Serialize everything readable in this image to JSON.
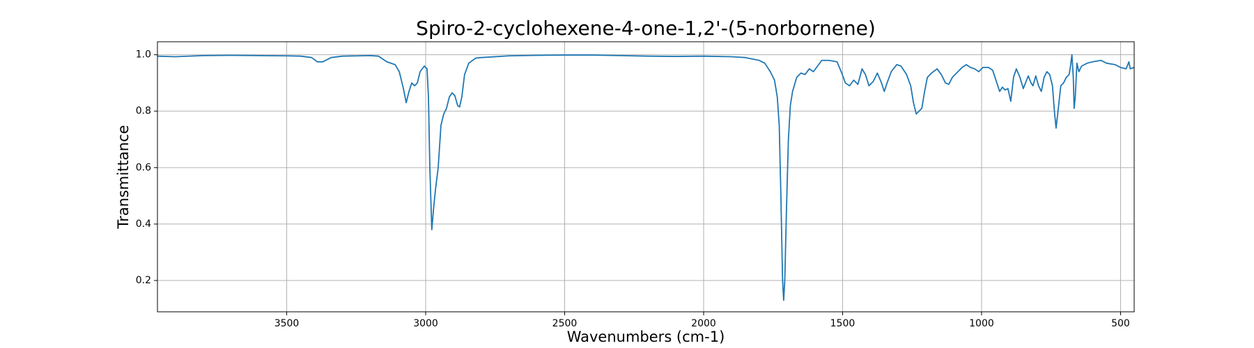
{
  "chart_data": {
    "type": "line",
    "title": "Spiro-2-cyclohexene-4-one-1,2'-(5-norbornene)",
    "x_label": "Wavenumbers (cm-1)",
    "y_label": "Transmittance",
    "xlim": [
      3965,
      451
    ],
    "ylim": [
      0.089,
      1.046
    ],
    "xticks": [
      3500,
      3000,
      2500,
      2000,
      1500,
      1000,
      500
    ],
    "yticks": [
      0.2,
      0.4,
      0.6,
      0.8,
      {
        "value": 1,
        "label": "1.0"
      }
    ],
    "grid": true,
    "x": [
      3965,
      3900,
      3800,
      3700,
      3600,
      3500,
      3450,
      3410,
      3390,
      3370,
      3340,
      3300,
      3200,
      3170,
      3140,
      3110,
      3095,
      3080,
      3070,
      3060,
      3050,
      3040,
      3030,
      3020,
      3005,
      2995,
      2990,
      2985,
      2978,
      2972,
      2965,
      2955,
      2945,
      2935,
      2925,
      2915,
      2905,
      2895,
      2885,
      2878,
      2870,
      2860,
      2845,
      2820,
      2800,
      2700,
      2600,
      2500,
      2400,
      2300,
      2200,
      2100,
      2000,
      1900,
      1850,
      1800,
      1780,
      1760,
      1745,
      1735,
      1728,
      1722,
      1716,
      1712,
      1708,
      1702,
      1695,
      1688,
      1680,
      1665,
      1650,
      1635,
      1620,
      1605,
      1590,
      1575,
      1550,
      1520,
      1505,
      1490,
      1475,
      1460,
      1445,
      1430,
      1418,
      1405,
      1390,
      1375,
      1360,
      1350,
      1340,
      1325,
      1305,
      1290,
      1270,
      1255,
      1245,
      1235,
      1225,
      1215,
      1205,
      1195,
      1180,
      1160,
      1145,
      1130,
      1118,
      1105,
      1090,
      1070,
      1055,
      1040,
      1025,
      1010,
      995,
      975,
      960,
      945,
      935,
      925,
      915,
      905,
      895,
      885,
      875,
      862,
      850,
      840,
      832,
      822,
      815,
      805,
      795,
      785,
      775,
      765,
      755,
      745,
      738,
      732,
      725,
      715,
      705,
      695,
      685,
      680,
      675,
      670,
      667,
      663,
      657,
      650,
      640,
      620,
      600,
      570,
      550,
      520,
      500,
      480,
      470,
      465,
      451
    ],
    "series": [
      {
        "name": "Transmittance",
        "color": "#1f77b4",
        "values": [
          0.995,
          0.993,
          0.997,
          0.998,
          0.997,
          0.996,
          0.995,
          0.99,
          0.975,
          0.975,
          0.99,
          0.995,
          0.997,
          0.995,
          0.975,
          0.965,
          0.94,
          0.88,
          0.83,
          0.87,
          0.9,
          0.89,
          0.9,
          0.94,
          0.96,
          0.95,
          0.85,
          0.6,
          0.38,
          0.45,
          0.52,
          0.6,
          0.75,
          0.79,
          0.81,
          0.85,
          0.865,
          0.855,
          0.82,
          0.815,
          0.85,
          0.93,
          0.97,
          0.988,
          0.99,
          0.996,
          0.998,
          0.999,
          0.999,
          0.997,
          0.995,
          0.994,
          0.995,
          0.993,
          0.99,
          0.98,
          0.97,
          0.94,
          0.91,
          0.85,
          0.75,
          0.5,
          0.2,
          0.13,
          0.2,
          0.45,
          0.7,
          0.82,
          0.87,
          0.92,
          0.935,
          0.93,
          0.95,
          0.94,
          0.96,
          0.98,
          0.98,
          0.975,
          0.94,
          0.9,
          0.89,
          0.91,
          0.895,
          0.95,
          0.93,
          0.89,
          0.905,
          0.935,
          0.9,
          0.87,
          0.9,
          0.94,
          0.965,
          0.96,
          0.93,
          0.89,
          0.83,
          0.79,
          0.8,
          0.81,
          0.87,
          0.92,
          0.935,
          0.95,
          0.93,
          0.9,
          0.895,
          0.92,
          0.935,
          0.955,
          0.965,
          0.955,
          0.95,
          0.94,
          0.955,
          0.955,
          0.945,
          0.9,
          0.87,
          0.885,
          0.875,
          0.88,
          0.835,
          0.92,
          0.95,
          0.92,
          0.88,
          0.905,
          0.925,
          0.9,
          0.89,
          0.925,
          0.89,
          0.87,
          0.92,
          0.94,
          0.93,
          0.89,
          0.8,
          0.74,
          0.8,
          0.89,
          0.9,
          0.92,
          0.93,
          0.96,
          1.0,
          0.92,
          0.81,
          0.85,
          0.97,
          0.94,
          0.96,
          0.97,
          0.975,
          0.98,
          0.97,
          0.965,
          0.955,
          0.95,
          0.975,
          0.95,
          0.955
        ]
      }
    ]
  }
}
